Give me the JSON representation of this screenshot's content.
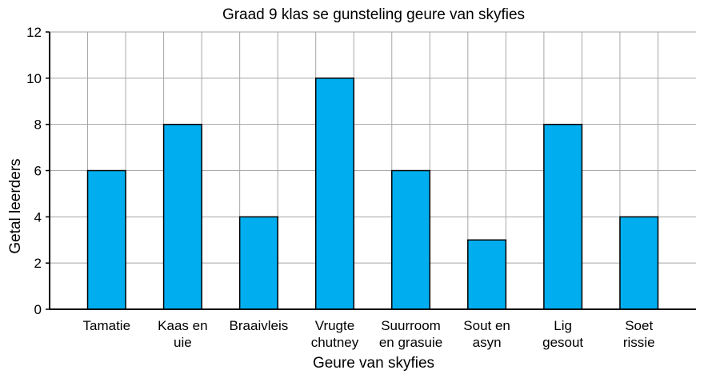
{
  "chart_data": {
    "type": "bar",
    "title": "Graad 9 klas se gunsteling geure van skyfies",
    "xlabel": "Geure van skyfies",
    "ylabel": "Getal leerders",
    "categories": [
      [
        "Tamatie"
      ],
      [
        "Kaas en",
        "uie"
      ],
      [
        "Braaivleis"
      ],
      [
        "Vrugte",
        "chutney"
      ],
      [
        "Suurroom",
        "en grasuie"
      ],
      [
        "Sout en",
        "asyn"
      ],
      [
        "Lig",
        "gesout"
      ],
      [
        "Soet",
        "rissie"
      ]
    ],
    "values": [
      6,
      8,
      4,
      10,
      6,
      3,
      8,
      4
    ],
    "ylim": [
      0,
      12
    ],
    "yticks": [
      0,
      2,
      4,
      6,
      8,
      10,
      12
    ],
    "grid": true,
    "bar_color": "#00aeef",
    "legend": "none"
  }
}
